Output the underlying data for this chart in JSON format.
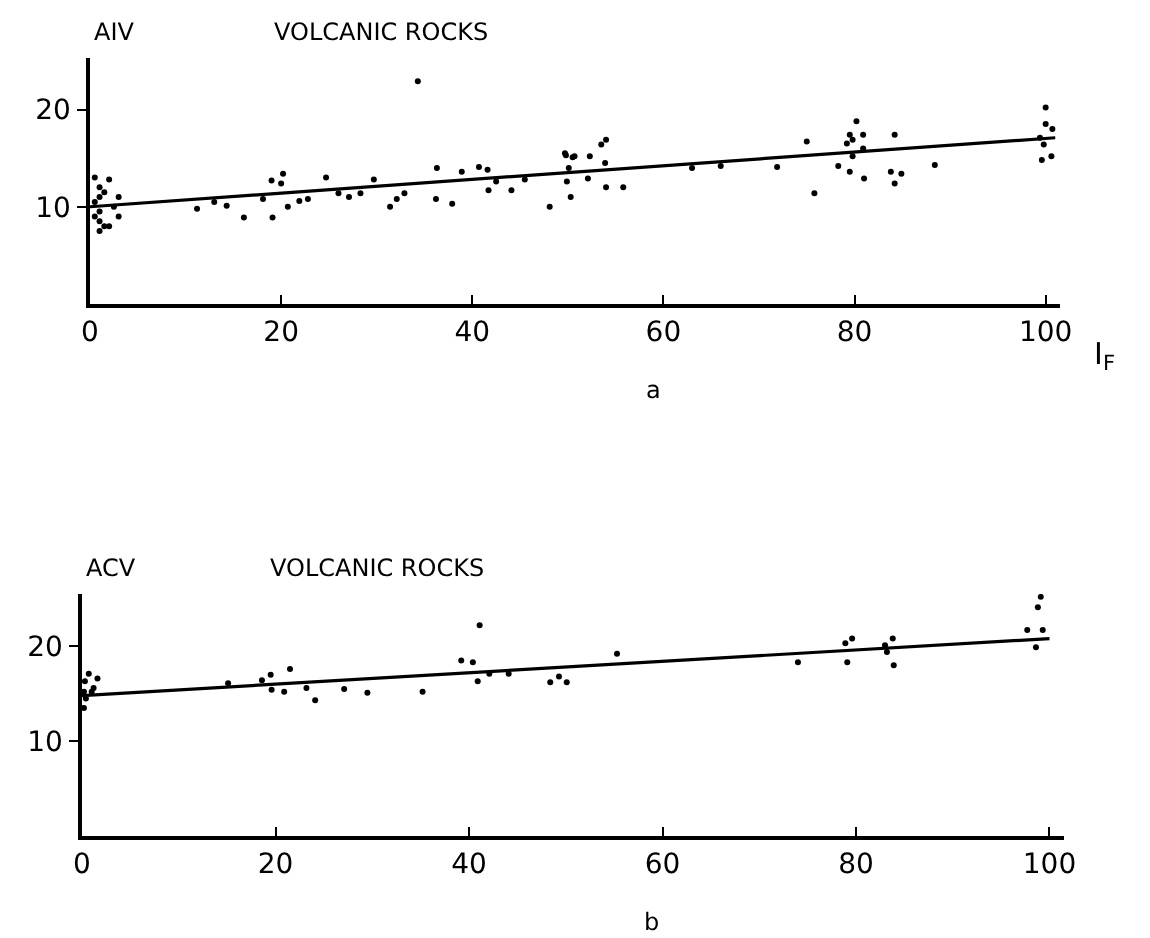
{
  "chart_data": [
    {
      "type": "scatter",
      "title": "VOLCANIC ROCKS",
      "ylabel": "AIV",
      "xlabel": "I$_{F}$",
      "annotations": [
        "a"
      ],
      "xlim": [
        0,
        101.5
      ],
      "ylim": [
        0,
        25.3
      ],
      "xticks": [
        0,
        20,
        40,
        60,
        80,
        100
      ],
      "yticks": [
        10,
        20
      ],
      "grid": false,
      "series": [
        {
          "marker": "circle",
          "color": "#000000",
          "x": [
            0.5,
            1,
            1.5,
            1,
            0.5,
            1,
            0.5,
            1,
            1.5,
            1,
            2,
            3,
            3,
            2,
            2.5,
            11.2,
            13,
            14.3,
            16.1,
            18.1,
            19,
            19.1,
            20,
            20.2,
            20.7,
            21.9,
            22.8,
            24.7,
            26,
            27.1,
            28.3,
            29.7,
            31.4,
            32.1,
            32.9,
            34.3,
            36.2,
            36.3,
            37.9,
            38.9,
            40.7,
            41.6,
            41.7,
            42.5,
            44.1,
            45.5,
            48.1,
            49.7,
            50.1,
            50.3,
            50.7,
            52.3,
            49.8,
            49.9,
            50.5,
            53.5,
            54,
            53.9,
            52.1,
            54,
            55.8,
            63,
            66,
            71.9,
            75,
            75.8,
            78.3,
            79.2,
            79.5,
            79.8,
            80.2,
            80.9,
            80.9,
            79.8,
            79.5,
            81,
            84.2,
            83.8,
            84.9,
            84.2,
            88.4,
            99.4,
            99.6,
            99.8,
            100,
            100,
            100.7,
            100.6
          ],
          "values": [
            13,
            12,
            11.5,
            11,
            10.5,
            9.5,
            9,
            8.5,
            8,
            7.5,
            12.8,
            11,
            9,
            8,
            10,
            9.8,
            10.5,
            10.1,
            8.9,
            10.8,
            12.7,
            8.9,
            12.4,
            13.4,
            10,
            10.6,
            10.8,
            13,
            11.4,
            11,
            11.4,
            12.8,
            10,
            10.8,
            11.4,
            22.9,
            10.8,
            14,
            10.3,
            13.6,
            14.1,
            13.8,
            11.7,
            12.6,
            11.7,
            12.8,
            10,
            15.5,
            14,
            11,
            15.2,
            15.2,
            15.3,
            12.6,
            15.1,
            16.4,
            16.9,
            14.5,
            12.9,
            12,
            12,
            14,
            14.2,
            14.1,
            16.7,
            11.4,
            14.2,
            16.5,
            17.4,
            16.9,
            18.8,
            17.4,
            16,
            15.2,
            13.6,
            12.9,
            17.4,
            13.6,
            13.4,
            12.4,
            14.3,
            17.1,
            14.8,
            16.4,
            20.2,
            18.5,
            18,
            15.2
          ]
        },
        {
          "type": "line",
          "color": "#000000",
          "x": [
            0,
            101
          ],
          "values": [
            10,
            17.1
          ]
        }
      ]
    },
    {
      "type": "scatter",
      "title": "VOLCANIC ROCKS",
      "ylabel": "ACV",
      "annotations": [
        "b"
      ],
      "xlim": [
        0,
        101.5
      ],
      "ylim": [
        0,
        25.5
      ],
      "xticks": [
        0,
        20,
        40,
        60,
        80,
        100
      ],
      "yticks": [
        10,
        20
      ],
      "grid": false,
      "series": [
        {
          "marker": "circle",
          "color": "#000000",
          "x": [
            0.2,
            0.3,
            0.7,
            1,
            0.4,
            1.6,
            1.2,
            0.2,
            15.1,
            18.6,
            19.5,
            19.6,
            20.9,
            21.5,
            23.2,
            24.1,
            27.1,
            29.5,
            35.2,
            39.2,
            40.4,
            41.1,
            40.9,
            42.1,
            44.1,
            48.4,
            49.3,
            50.1,
            55.3,
            74,
            78.9,
            79.6,
            79.1,
            83,
            83.2,
            83.8,
            83.9,
            97.7,
            98.6,
            98.8,
            99.1,
            99.3
          ],
          "values": [
            13.5,
            16.3,
            17.1,
            15.2,
            14.5,
            16.6,
            15.6,
            15.2,
            16.1,
            16.4,
            17,
            15.4,
            15.2,
            17.6,
            15.6,
            14.3,
            15.5,
            15.1,
            15.2,
            18.5,
            18.3,
            22.2,
            16.3,
            17.1,
            17.1,
            16.2,
            16.8,
            16.2,
            19.2,
            18.3,
            20.3,
            20.8,
            18.3,
            20.1,
            19.4,
            20.8,
            18,
            21.7,
            19.9,
            24.1,
            25.2,
            21.7
          ]
        },
        {
          "type": "line",
          "color": "#000000",
          "x": [
            0,
            100
          ],
          "values": [
            14.8,
            20.8
          ]
        }
      ]
    }
  ]
}
